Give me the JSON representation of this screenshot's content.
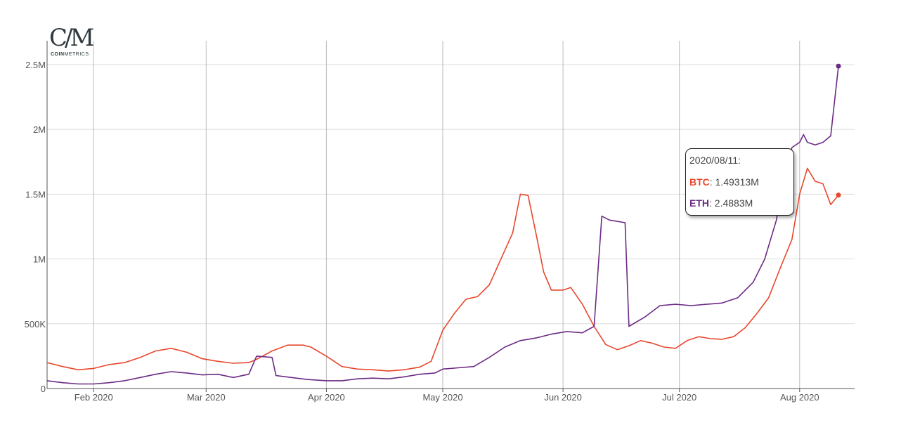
{
  "logo": {
    "mark": "C/M",
    "text_bold": "COIN",
    "text_rest": "METRICS"
  },
  "tooltip": {
    "date": "2020/08/11:",
    "rows": [
      {
        "name": "BTC",
        "value": "1.49313M",
        "color": "#e8472c"
      },
      {
        "name": "ETH",
        "value": "2.4883M",
        "color": "#6b2b83"
      }
    ]
  },
  "chart_data": {
    "type": "line",
    "title": "",
    "xlabel": "",
    "ylabel": "",
    "x_ticks": [
      "Feb 2020",
      "Mar 2020",
      "Apr 2020",
      "May 2020",
      "Jun 2020",
      "Jul 2020",
      "Aug 2020"
    ],
    "y_ticks": [
      "0",
      "500K",
      "1M",
      "1.5M",
      "2M",
      "2.5M"
    ],
    "ylim": [
      0,
      2500000
    ],
    "x_range": [
      "2020-01-20",
      "2020-08-11"
    ],
    "grid": true,
    "legend": "none",
    "series": [
      {
        "name": "BTC",
        "color": "#e8472c",
        "points": [
          [
            "2020-01-20",
            200000
          ],
          [
            "2020-01-24",
            170000
          ],
          [
            "2020-01-28",
            145000
          ],
          [
            "2020-02-01",
            155000
          ],
          [
            "2020-02-05",
            185000
          ],
          [
            "2020-02-09",
            200000
          ],
          [
            "2020-02-13",
            240000
          ],
          [
            "2020-02-17",
            290000
          ],
          [
            "2020-02-21",
            310000
          ],
          [
            "2020-02-25",
            280000
          ],
          [
            "2020-02-29",
            230000
          ],
          [
            "2020-03-04",
            210000
          ],
          [
            "2020-03-08",
            195000
          ],
          [
            "2020-03-12",
            200000
          ],
          [
            "2020-03-14",
            225000
          ],
          [
            "2020-03-18",
            290000
          ],
          [
            "2020-03-22",
            335000
          ],
          [
            "2020-03-26",
            335000
          ],
          [
            "2020-03-28",
            320000
          ],
          [
            "2020-04-01",
            250000
          ],
          [
            "2020-04-05",
            170000
          ],
          [
            "2020-04-09",
            150000
          ],
          [
            "2020-04-13",
            145000
          ],
          [
            "2020-04-17",
            135000
          ],
          [
            "2020-04-21",
            145000
          ],
          [
            "2020-04-25",
            165000
          ],
          [
            "2020-04-28",
            210000
          ],
          [
            "2020-05-01",
            450000
          ],
          [
            "2020-05-04",
            580000
          ],
          [
            "2020-05-07",
            690000
          ],
          [
            "2020-05-10",
            710000
          ],
          [
            "2020-05-13",
            800000
          ],
          [
            "2020-05-16",
            1000000
          ],
          [
            "2020-05-19",
            1200000
          ],
          [
            "2020-05-21",
            1500000
          ],
          [
            "2020-05-23",
            1490000
          ],
          [
            "2020-05-25",
            1200000
          ],
          [
            "2020-05-27",
            900000
          ],
          [
            "2020-05-29",
            760000
          ],
          [
            "2020-06-01",
            760000
          ],
          [
            "2020-06-03",
            780000
          ],
          [
            "2020-06-06",
            650000
          ],
          [
            "2020-06-09",
            480000
          ],
          [
            "2020-06-12",
            340000
          ],
          [
            "2020-06-15",
            300000
          ],
          [
            "2020-06-18",
            330000
          ],
          [
            "2020-06-21",
            370000
          ],
          [
            "2020-06-24",
            350000
          ],
          [
            "2020-06-27",
            320000
          ],
          [
            "2020-06-30",
            310000
          ],
          [
            "2020-07-03",
            370000
          ],
          [
            "2020-07-06",
            400000
          ],
          [
            "2020-07-09",
            385000
          ],
          [
            "2020-07-12",
            380000
          ],
          [
            "2020-07-15",
            400000
          ],
          [
            "2020-07-18",
            470000
          ],
          [
            "2020-07-21",
            580000
          ],
          [
            "2020-07-24",
            700000
          ],
          [
            "2020-07-27",
            930000
          ],
          [
            "2020-07-30",
            1150000
          ],
          [
            "2020-08-01",
            1500000
          ],
          [
            "2020-08-03",
            1700000
          ],
          [
            "2020-08-05",
            1600000
          ],
          [
            "2020-08-07",
            1580000
          ],
          [
            "2020-08-09",
            1420000
          ],
          [
            "2020-08-11",
            1493130
          ]
        ]
      },
      {
        "name": "ETH",
        "color": "#6b2b83",
        "points": [
          [
            "2020-01-20",
            60000
          ],
          [
            "2020-01-24",
            45000
          ],
          [
            "2020-01-28",
            35000
          ],
          [
            "2020-02-01",
            35000
          ],
          [
            "2020-02-05",
            45000
          ],
          [
            "2020-02-09",
            60000
          ],
          [
            "2020-02-13",
            85000
          ],
          [
            "2020-02-17",
            110000
          ],
          [
            "2020-02-21",
            130000
          ],
          [
            "2020-02-25",
            120000
          ],
          [
            "2020-02-29",
            105000
          ],
          [
            "2020-03-04",
            110000
          ],
          [
            "2020-03-08",
            85000
          ],
          [
            "2020-03-12",
            110000
          ],
          [
            "2020-03-14",
            250000
          ],
          [
            "2020-03-18",
            240000
          ],
          [
            "2020-03-19",
            100000
          ],
          [
            "2020-03-23",
            85000
          ],
          [
            "2020-03-27",
            70000
          ],
          [
            "2020-04-01",
            60000
          ],
          [
            "2020-04-05",
            60000
          ],
          [
            "2020-04-09",
            75000
          ],
          [
            "2020-04-13",
            80000
          ],
          [
            "2020-04-17",
            75000
          ],
          [
            "2020-04-21",
            90000
          ],
          [
            "2020-04-25",
            110000
          ],
          [
            "2020-04-29",
            120000
          ],
          [
            "2020-05-01",
            150000
          ],
          [
            "2020-05-05",
            160000
          ],
          [
            "2020-05-09",
            170000
          ],
          [
            "2020-05-13",
            240000
          ],
          [
            "2020-05-17",
            320000
          ],
          [
            "2020-05-21",
            370000
          ],
          [
            "2020-05-25",
            390000
          ],
          [
            "2020-05-29",
            420000
          ],
          [
            "2020-06-02",
            440000
          ],
          [
            "2020-06-06",
            430000
          ],
          [
            "2020-06-09",
            480000
          ],
          [
            "2020-06-11",
            1330000
          ],
          [
            "2020-06-13",
            1300000
          ],
          [
            "2020-06-15",
            1290000
          ],
          [
            "2020-06-17",
            1280000
          ],
          [
            "2020-06-18",
            480000
          ],
          [
            "2020-06-22",
            550000
          ],
          [
            "2020-06-26",
            640000
          ],
          [
            "2020-06-30",
            650000
          ],
          [
            "2020-07-04",
            640000
          ],
          [
            "2020-07-08",
            650000
          ],
          [
            "2020-07-12",
            660000
          ],
          [
            "2020-07-16",
            700000
          ],
          [
            "2020-07-20",
            820000
          ],
          [
            "2020-07-23",
            1000000
          ],
          [
            "2020-07-26",
            1300000
          ],
          [
            "2020-07-28",
            1650000
          ],
          [
            "2020-07-30",
            1860000
          ],
          [
            "2020-08-01",
            1900000
          ],
          [
            "2020-08-02",
            1960000
          ],
          [
            "2020-08-03",
            1900000
          ],
          [
            "2020-08-05",
            1880000
          ],
          [
            "2020-08-07",
            1900000
          ],
          [
            "2020-08-09",
            1950000
          ],
          [
            "2020-08-11",
            2488300
          ]
        ]
      }
    ]
  }
}
